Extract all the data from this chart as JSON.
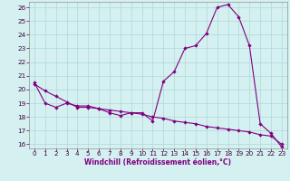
{
  "xlabel": "Windchill (Refroidissement éolien,°C)",
  "bg_color": "#d4f0f0",
  "line_color": "#800080",
  "grid_color": "#b0d8d8",
  "ylim": [
    15.7,
    26.4
  ],
  "xlim": [
    -0.5,
    23.5
  ],
  "yticks": [
    16,
    17,
    18,
    19,
    20,
    21,
    22,
    23,
    24,
    25,
    26
  ],
  "xticks": [
    0,
    1,
    2,
    3,
    4,
    5,
    6,
    7,
    8,
    9,
    10,
    11,
    12,
    13,
    14,
    15,
    16,
    17,
    18,
    19,
    20,
    21,
    22,
    23
  ],
  "series1_x": [
    0,
    1,
    2,
    3,
    4,
    5,
    6,
    7,
    8,
    9,
    10,
    11,
    12,
    13,
    14,
    15,
    16,
    17,
    18,
    19,
    20,
    21,
    22,
    23
  ],
  "series1_y": [
    20.5,
    19.0,
    18.7,
    19.0,
    18.8,
    18.8,
    18.6,
    18.3,
    18.1,
    18.3,
    18.3,
    17.7,
    20.6,
    21.3,
    23.0,
    23.2,
    24.1,
    26.0,
    26.2,
    25.3,
    23.2,
    17.5,
    16.8,
    15.8
  ],
  "series2_x": [
    0,
    1,
    2,
    3,
    4,
    5,
    6,
    7,
    8,
    9,
    10,
    11,
    12,
    13,
    14,
    15,
    16,
    17,
    18,
    19,
    20,
    21,
    22,
    23
  ],
  "series2_y": [
    20.4,
    19.9,
    19.5,
    19.1,
    18.7,
    18.7,
    18.6,
    18.5,
    18.4,
    18.3,
    18.2,
    18.0,
    17.9,
    17.7,
    17.6,
    17.5,
    17.3,
    17.2,
    17.1,
    17.0,
    16.9,
    16.7,
    16.6,
    16.0
  ],
  "tick_color": "#400040",
  "xlabel_color": "#800080",
  "xlabel_fontsize": 5.5,
  "tick_fontsize": 5.2,
  "linewidth": 0.8,
  "markersize": 2.2
}
